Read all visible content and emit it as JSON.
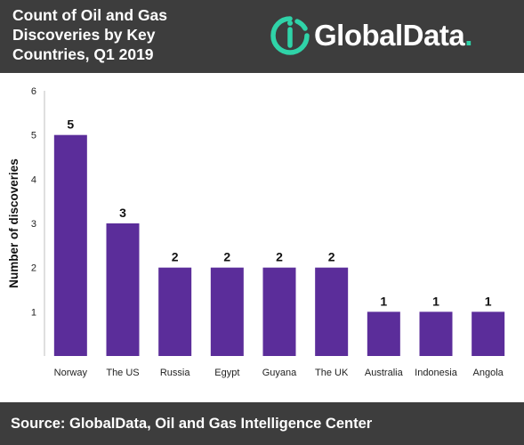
{
  "header": {
    "title_lines": [
      "Count of Oil and Gas",
      "Discoveries by Key",
      "Countries, Q1 2019"
    ],
    "logo": {
      "text": "GlobalData",
      "dot": ".",
      "icon": "globaldata-logo-icon",
      "accent_color": "#2fd3a8"
    }
  },
  "footer": {
    "source": "Source: GlobalData, Oil and Gas Intelligence Center"
  },
  "colors": {
    "bar": "#5b2d9a",
    "band": "#3d3d3d"
  },
  "chart_data": {
    "type": "bar",
    "title": "Count of Oil and Gas Discoveries by Key Countries, Q1 2019",
    "xlabel": "",
    "ylabel": "Number of discoveries",
    "categories": [
      "Norway",
      "The US",
      "Russia",
      "Egypt",
      "Guyana",
      "The UK",
      "Australia",
      "Indonesia",
      "Angola"
    ],
    "values": [
      5,
      3,
      2,
      2,
      2,
      2,
      1,
      1,
      1
    ],
    "ylim": [
      0,
      6
    ],
    "yticks": [
      1,
      2,
      3,
      4,
      5,
      6
    ],
    "data_labels": [
      "5",
      "3",
      "2",
      "2",
      "2",
      "2",
      "1",
      "1",
      "1"
    ],
    "grid": false,
    "legend": "none"
  }
}
